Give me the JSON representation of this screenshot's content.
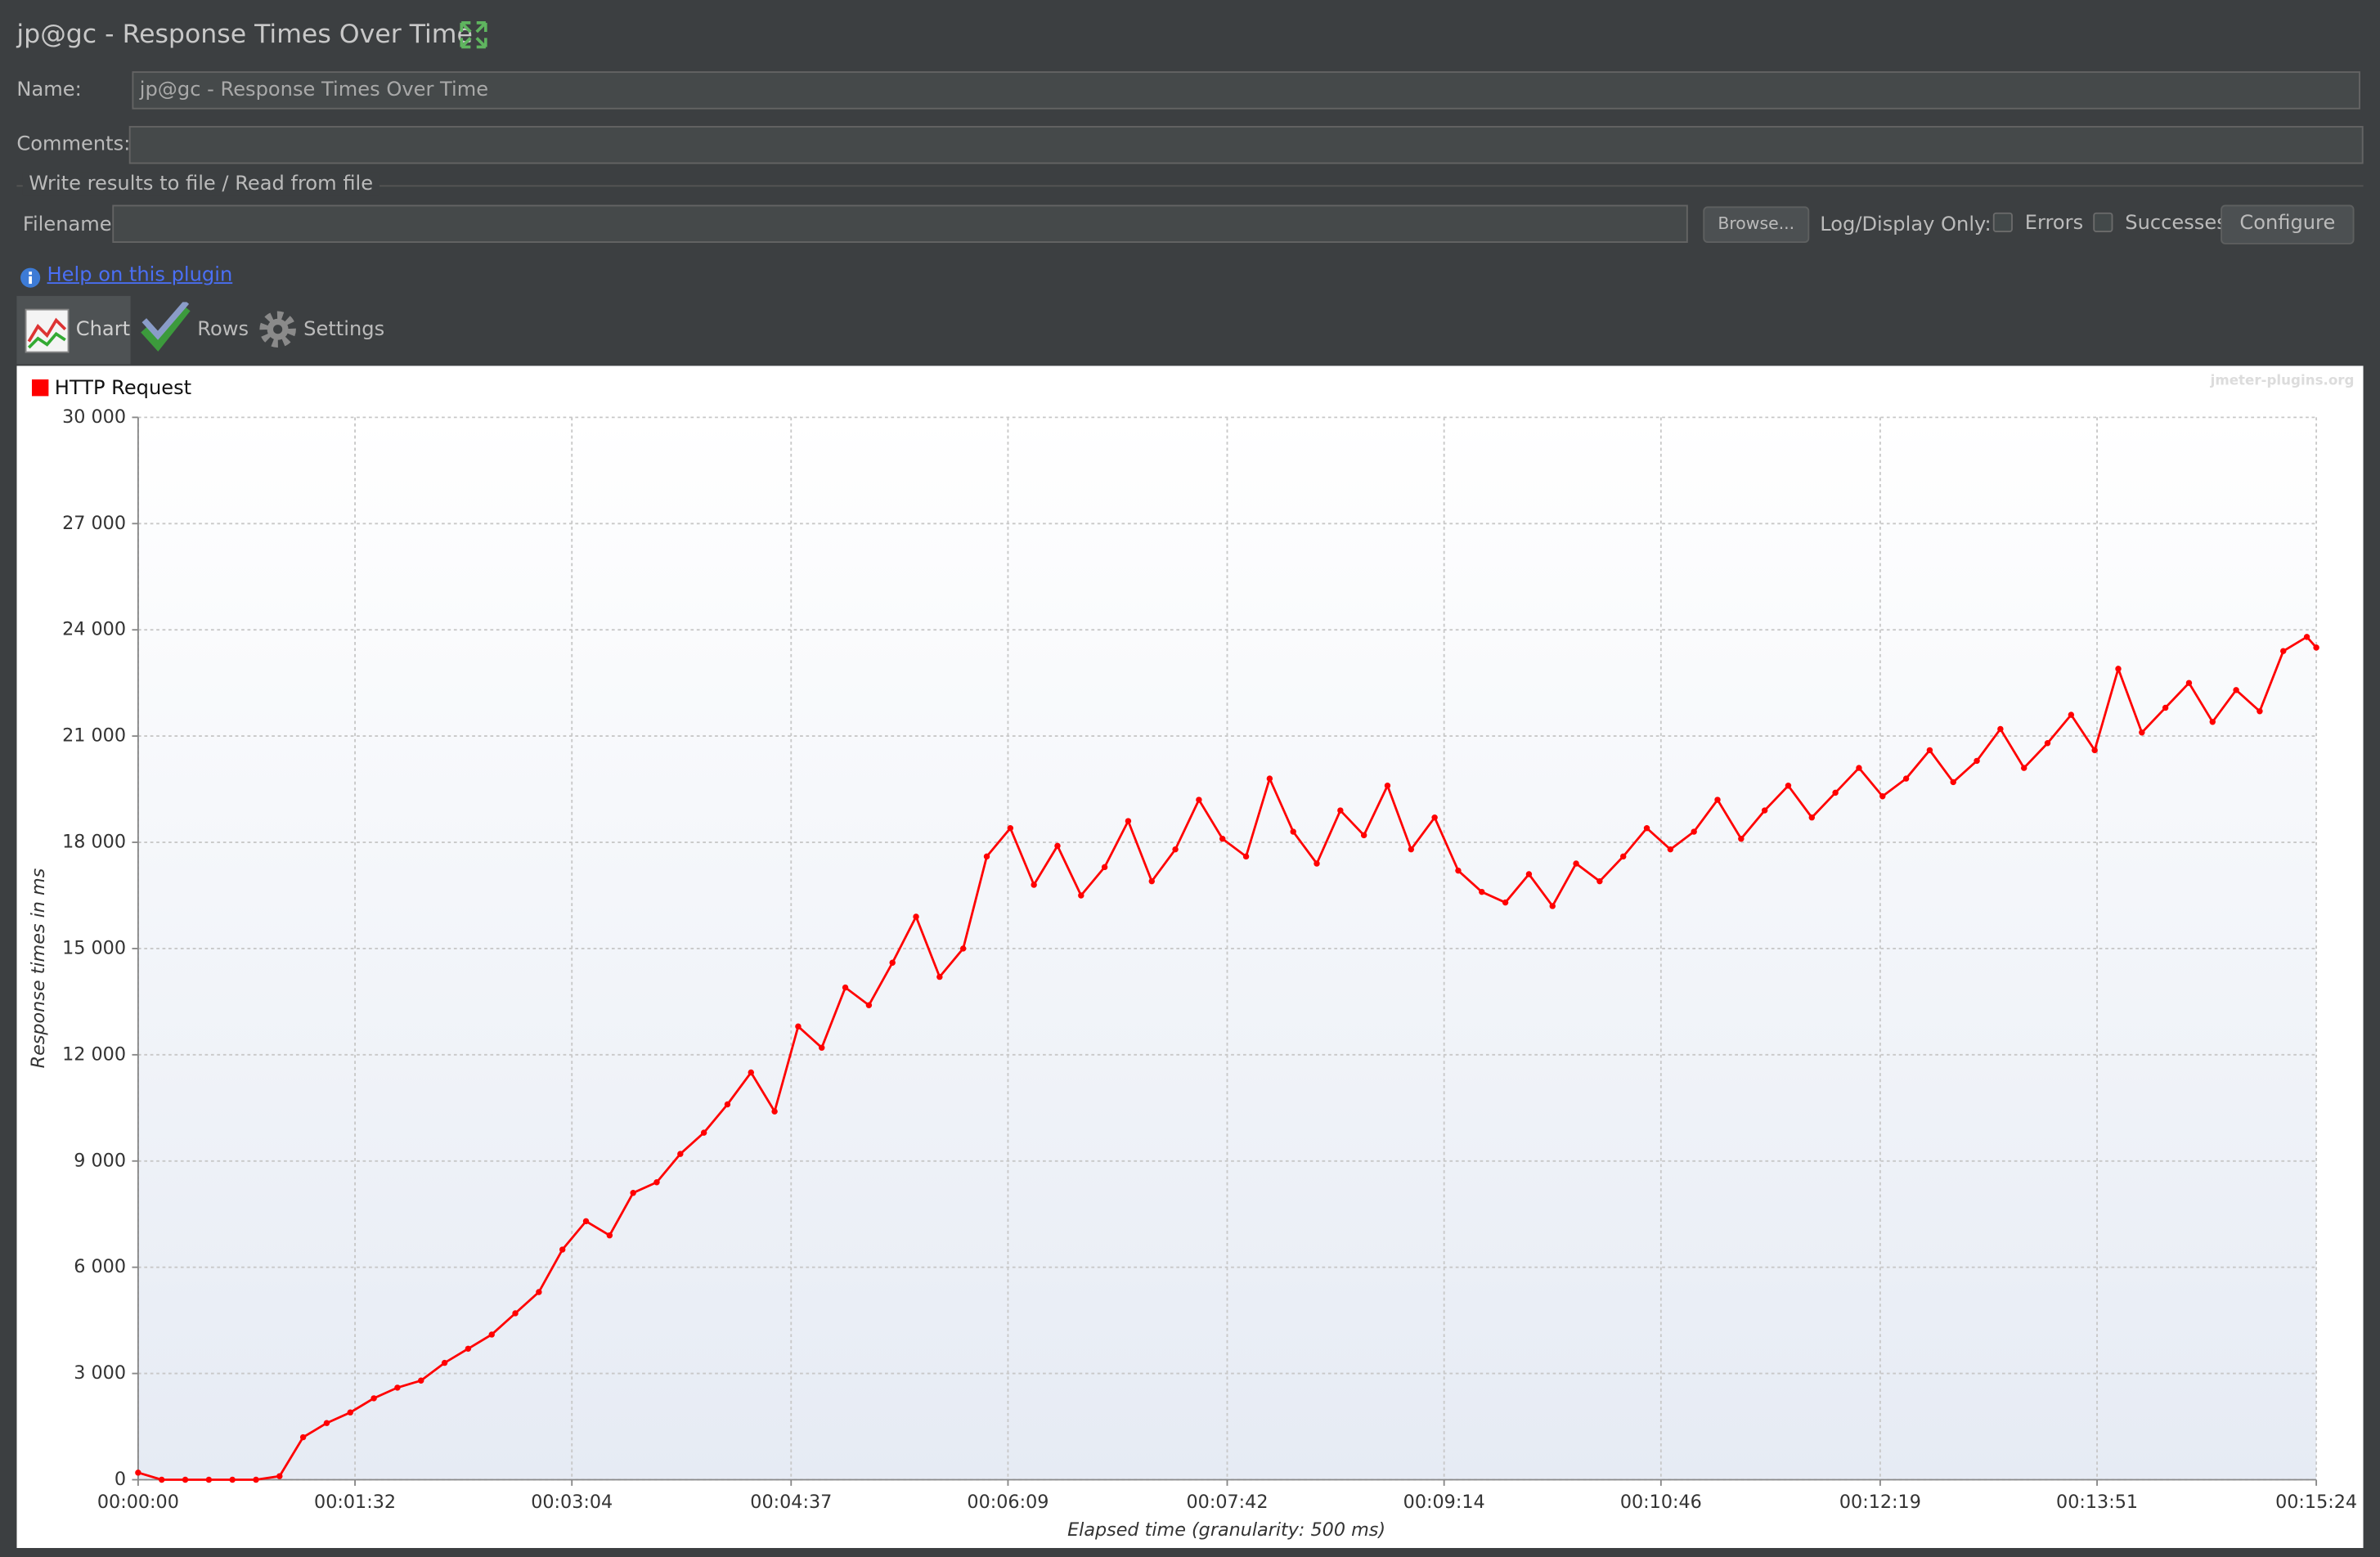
{
  "header": {
    "title": "jp@gc - Response Times Over Time"
  },
  "form": {
    "name_label": "Name:",
    "name_value": "jp@gc - Response Times Over Time",
    "comments_label": "Comments:",
    "file_section": "Write results to file / Read from file",
    "filename_label": "Filename",
    "browse": "Browse...",
    "log_display": "Log/Display Only:",
    "errors": "Errors",
    "successes": "Successes",
    "configure": "Configure"
  },
  "help": "Help on this plugin",
  "tabs": [
    "Chart",
    "Rows",
    "Settings"
  ],
  "watermark": "jmeter-plugins.org",
  "chart_data": {
    "type": "line",
    "x_label": "Elapsed time (granularity: 500 ms)",
    "y_label": "Response times in ms",
    "grid": true,
    "legend": "top-left",
    "xlim": [
      0,
      924
    ],
    "xticks": [
      {
        "value": 0,
        "label": "00:00:00"
      },
      {
        "value": 92,
        "label": "00:01:32"
      },
      {
        "value": 184,
        "label": "00:03:04"
      },
      {
        "value": 277,
        "label": "00:04:37"
      },
      {
        "value": 369,
        "label": "00:06:09"
      },
      {
        "value": 462,
        "label": "00:07:42"
      },
      {
        "value": 554,
        "label": "00:09:14"
      },
      {
        "value": 646,
        "label": "00:10:46"
      },
      {
        "value": 739,
        "label": "00:12:19"
      },
      {
        "value": 831,
        "label": "00:13:51"
      },
      {
        "value": 924,
        "label": "00:15:24"
      }
    ],
    "ylim": [
      0,
      30000
    ],
    "yticks": [
      0,
      {
        "value": 3000,
        "label": "3 000"
      },
      {
        "value": 6000,
        "label": "6 000"
      },
      {
        "value": 9000,
        "label": "9 000"
      },
      {
        "value": 12000,
        "label": "12 000"
      },
      {
        "value": 15000,
        "label": "15 000"
      },
      {
        "value": 18000,
        "label": "18 000"
      },
      {
        "value": 21000,
        "label": "21 000"
      },
      {
        "value": 24000,
        "label": "24 000"
      },
      {
        "value": 27000,
        "label": "27 000"
      },
      {
        "value": 30000,
        "label": "30 000"
      }
    ],
    "x": [
      0,
      10,
      20,
      30,
      40,
      50,
      60,
      70,
      80,
      90,
      100,
      110,
      120,
      130,
      140,
      150,
      160,
      170,
      180,
      190,
      200,
      210,
      220,
      230,
      240,
      250,
      260,
      270,
      280,
      290,
      300,
      310,
      320,
      330,
      340,
      350,
      360,
      370,
      380,
      390,
      400,
      410,
      420,
      430,
      440,
      450,
      460,
      470,
      480,
      490,
      500,
      510,
      520,
      530,
      540,
      550,
      560,
      570,
      580,
      590,
      600,
      610,
      620,
      630,
      640,
      650,
      660,
      670,
      680,
      690,
      700,
      710,
      720,
      730,
      740,
      750,
      760,
      770,
      780,
      790,
      800,
      810,
      820,
      830,
      840,
      850,
      860,
      870,
      880,
      890,
      900,
      910,
      920,
      924
    ],
    "series": [
      {
        "name": "HTTP Request",
        "color": "#ff0000",
        "values": [
          200,
          0,
          0,
          0,
          0,
          0,
          100,
          1200,
          1600,
          1900,
          2300,
          2600,
          2800,
          3300,
          3700,
          4100,
          4700,
          5300,
          6500,
          7300,
          6900,
          8100,
          8400,
          9200,
          9800,
          10600,
          11500,
          10400,
          12800,
          12200,
          13900,
          13400,
          14600,
          15900,
          14200,
          15000,
          17600,
          18400,
          16800,
          17900,
          16500,
          17300,
          18600,
          16900,
          17800,
          19200,
          18100,
          17600,
          19800,
          18300,
          17400,
          18900,
          18200,
          19600,
          17800,
          18700,
          17200,
          16600,
          16300,
          17100,
          16200,
          17400,
          16900,
          17600,
          18400,
          17800,
          18300,
          19200,
          18100,
          18900,
          19600,
          18700,
          19400,
          20100,
          19300,
          19800,
          20600,
          19700,
          20300,
          21200,
          20100,
          20800,
          21600,
          20600,
          22900,
          21100,
          21800,
          22500,
          21400,
          22300,
          21700,
          23400,
          23800,
          23500
        ]
      }
    ]
  }
}
